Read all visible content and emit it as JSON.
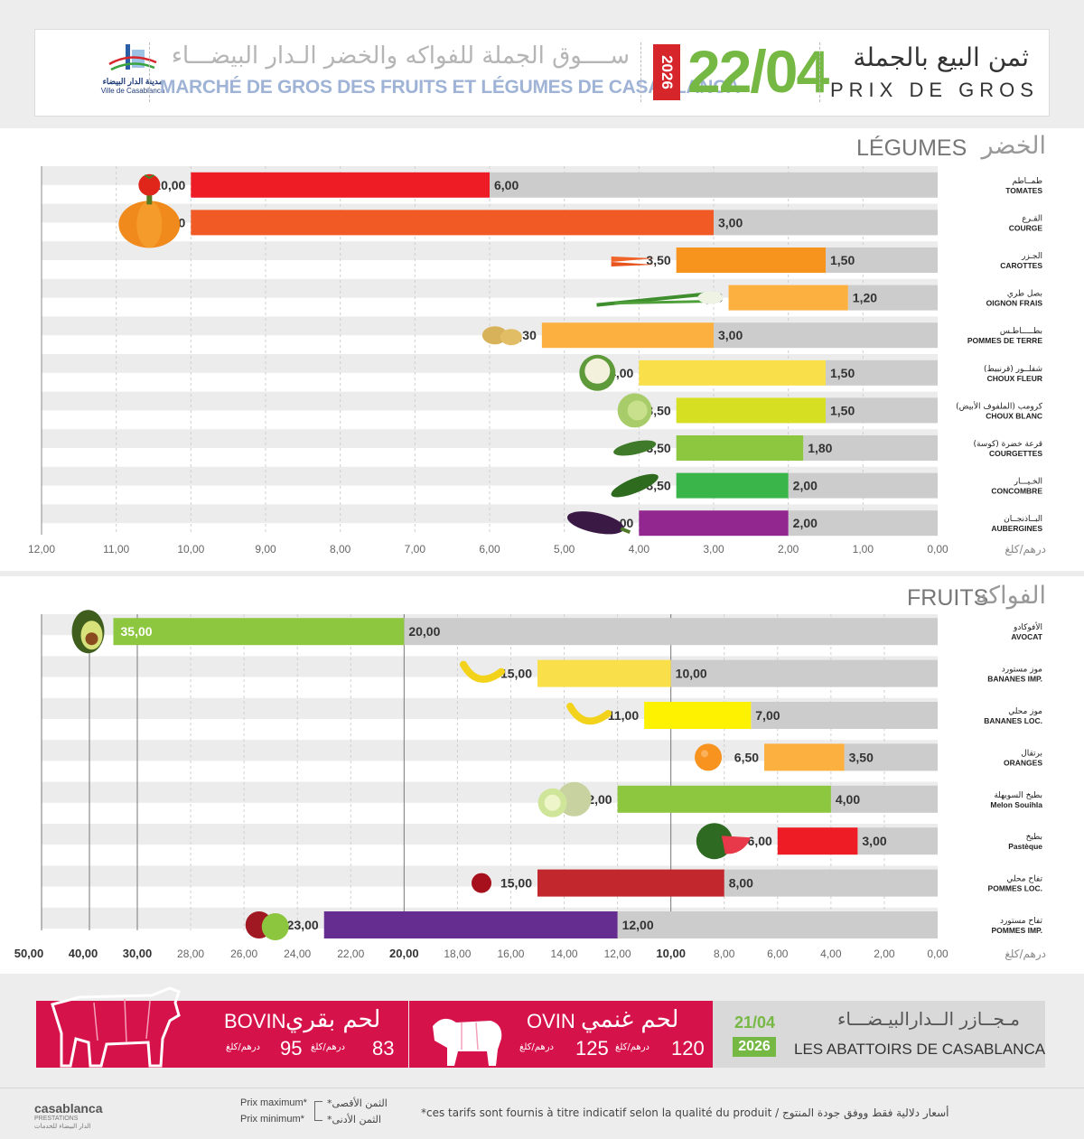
{
  "header": {
    "logo_ar": "مدينة الدار البيضاء",
    "logo_fr": "Ville de Casablanca",
    "market_ar": "ســــوق الجملة للفواكه والخضر الـدار البيضـــاء",
    "market_fr": "MARCHÉ DE GROS DES FRUITS ET LÉGUMES DE CASABLANCA",
    "year": "2026",
    "date": "22/04",
    "title_ar": "ثمن البيع بالجملة",
    "title_fr": "PRIX DE GROS"
  },
  "colors": {
    "bg_bar": "#cccccc",
    "green": "#76b844",
    "red": "#d6124a"
  },
  "chart_data": [
    {
      "type": "bar",
      "title_fr": "LÉGUMES",
      "title_ar": "الخضر",
      "unit": "درهم/كلغ",
      "xlim": [
        0,
        12
      ],
      "ticks": [
        "12,00",
        "11,00",
        "10,00",
        "9,00",
        "8,00",
        "7,00",
        "6,00",
        "5,00",
        "4,00",
        "3,00",
        "2,00",
        "1,00",
        "0,00"
      ],
      "categories_fr": [
        "TOMATES",
        "COURGE",
        "CAROTTES",
        "OIGNON FRAIS",
        "POMMES DE TERRE",
        "CHOUX FLEUR",
        "CHOUX BLANC",
        "COURGETTES",
        "CONCOMBRE",
        "AUBERGINES"
      ],
      "categories_ar": [
        "طمــاطم",
        "القـرع",
        "الجـزر",
        "بصل طري",
        "بطـــــاطـس",
        "شفلــور (قرنبيط)",
        "كرومب (الملفوف الأبيض)",
        "قرعة خضرة (كوسة)",
        "الخـيـــار",
        "البــاذنجــان"
      ],
      "series": [
        {
          "name": "Prix maximum",
          "values": [
            10.0,
            10.0,
            3.5,
            2.8,
            5.3,
            4.0,
            3.5,
            3.5,
            3.5,
            4.0
          ],
          "labels": [
            "10,00",
            "10,00",
            "3,50",
            "2,80",
            "5,30",
            "4,00",
            "3,50",
            "3,50",
            "3,50",
            "4,00"
          ]
        },
        {
          "name": "Prix minimum",
          "values": [
            6.0,
            3.0,
            1.5,
            1.2,
            3.0,
            1.5,
            1.5,
            1.8,
            2.0,
            2.0
          ],
          "labels": [
            "6,00",
            "3,00",
            "1,50",
            "1,20",
            "3,00",
            "1,50",
            "1,50",
            "1,80",
            "2,00",
            "2,00"
          ]
        }
      ],
      "bar_colors": [
        "#ee1c25",
        "#f15a24",
        "#f7941d",
        "#fbb040",
        "#fbb040",
        "#f9e04b",
        "#d7df23",
        "#8dc63f",
        "#39b54a",
        "#92278f"
      ],
      "icons": [
        "tomato-icon",
        "pumpkin-icon",
        "carrot-icon",
        "spring-onion-icon",
        "potato-icon",
        "cauliflower-icon",
        "cabbage-icon",
        "zucchini-icon",
        "cucumber-icon",
        "eggplant-icon"
      ]
    },
    {
      "type": "bar",
      "title_fr": "FRUITS",
      "title_ar": "الفواكه",
      "unit": "درهم/كلغ",
      "xlim": [
        0,
        50
      ],
      "ticks": [
        "50,00",
        "40,00",
        "30,00",
        "28,00",
        "26,00",
        "24,00",
        "22,00",
        "20,00",
        "18,00",
        "16,00",
        "14,00",
        "12,00",
        "10,00",
        "8,00",
        "6,00",
        "4,00",
        "2,00",
        "0,00"
      ],
      "categories_fr": [
        "AVOCAT",
        "BANANES IMP.",
        "BANANES LOC.",
        "ORANGES",
        "Melon Souihla",
        "Pastèque",
        "POMMES LOC.",
        "POMMES IMP."
      ],
      "categories_ar": [
        "الأفوكادو",
        "موز مستورد",
        "موز محلي",
        "برتقال",
        "بطيخ السويهلة",
        "بطيخ",
        "تفاح محلي",
        "تفاح مستورد"
      ],
      "series": [
        {
          "name": "Prix maximum",
          "values": [
            35.0,
            15.0,
            11.0,
            6.5,
            12.0,
            6.0,
            15.0,
            23.0
          ],
          "labels": [
            "35,00",
            "15,00",
            "11,00",
            "6,50",
            "12,00",
            "6,00",
            "15,00",
            "23,00"
          ]
        },
        {
          "name": "Prix minimum",
          "values": [
            20.0,
            10.0,
            7.0,
            3.5,
            4.0,
            3.0,
            8.0,
            12.0
          ],
          "labels": [
            "20,00",
            "10,00",
            "7,00",
            "3,50",
            "4,00",
            "3,00",
            "8,00",
            "12,00"
          ]
        }
      ],
      "bar_colors": [
        "#8dc63f",
        "#f9e04b",
        "#fff200",
        "#fbb040",
        "#8dc63f",
        "#ee1c25",
        "#c1272d",
        "#662d91"
      ],
      "icons": [
        "avocado-icon",
        "banana-icon",
        "banana-icon",
        "orange-icon",
        "melon-icon",
        "watermelon-icon",
        "apple-red-icon",
        "apple-mixed-icon"
      ]
    }
  ],
  "meat": {
    "bovin_fr": "BOVIN",
    "bovin_ar": "لحم بقري",
    "bovin_max": "95",
    "bovin_min": "83",
    "ovin_fr": "OVIN",
    "ovin_ar": "لحم غنمي",
    "ovin_max": "125",
    "ovin_min": "120",
    "unit": "درهم/كلغ",
    "abattoirs_ar": "مـجــازر الــدارالبيـضـــاء",
    "abattoirs_fr": "LES ABATTOIRS DE CASABLANCA",
    "date": "21/04",
    "year": "2026"
  },
  "footer": {
    "brand": "casablanca",
    "brand_sub": "PRESTATIONS",
    "brand_ar": "الدار البيضاء للخدمات",
    "prix_max_fr": "Prix maximum*",
    "prix_min_fr": "Prix minimum*",
    "prix_max_ar": "*الثمن الأقصى",
    "prix_min_ar": "*الثمن الأدنى",
    "note": "*ces tarifs sont fournis à titre indicatif selon la qualité du produit  /  أسعار دلالية فقط ووفق جودة المنتوج"
  }
}
